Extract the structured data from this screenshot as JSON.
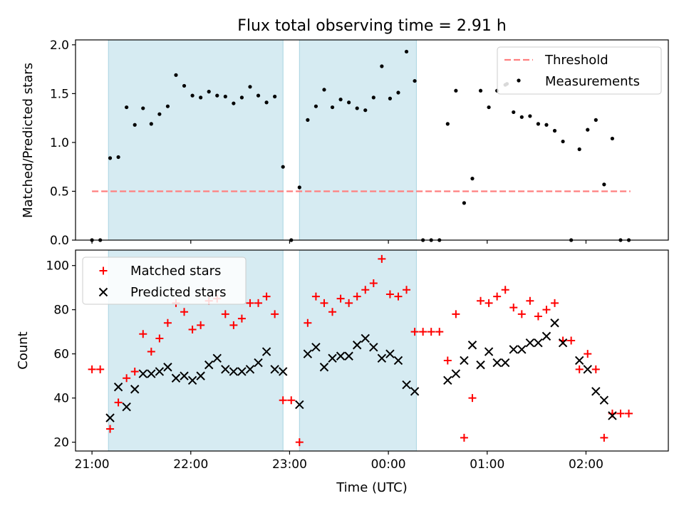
{
  "chart_data": [
    {
      "type": "scatter",
      "title": "Flux total observing time = 2.91 h",
      "xlabel": "",
      "ylabel": "Matched/Predicted stars",
      "xlim": [
        "20:50",
        "02:50"
      ],
      "ylim": [
        0,
        2.05
      ],
      "yticks": [
        0,
        0.5,
        1.0,
        1.5,
        2.0
      ],
      "ytick_labels": [
        "0.0",
        "0.5",
        "1.0",
        "1.5",
        "2.0"
      ],
      "grid": false,
      "legend_location": "upper right",
      "legend": [
        "Threshold",
        "Measurements"
      ],
      "shaded_intervals": [
        [
          "21:10",
          "22:56"
        ],
        [
          "23:06",
          "00:17"
        ]
      ],
      "threshold": {
        "name": "Threshold",
        "value": 0.5,
        "x_range": [
          "21:00",
          "02:27"
        ],
        "color": "#ff7f7f"
      },
      "series": [
        {
          "name": "Measurements",
          "color": "#000000",
          "points": [
            [
              "21:00",
              0.0
            ],
            [
              "21:05",
              0.0
            ],
            [
              "21:11",
              0.84
            ],
            [
              "21:16",
              0.85
            ],
            [
              "21:21",
              1.36
            ],
            [
              "21:26",
              1.18
            ],
            [
              "21:31",
              1.35
            ],
            [
              "21:36",
              1.19
            ],
            [
              "21:41",
              1.29
            ],
            [
              "21:46",
              1.37
            ],
            [
              "21:51",
              1.69
            ],
            [
              "21:56",
              1.58
            ],
            [
              "22:01",
              1.48
            ],
            [
              "22:06",
              1.46
            ],
            [
              "22:11",
              1.52
            ],
            [
              "22:16",
              1.48
            ],
            [
              "22:21",
              1.47
            ],
            [
              "22:26",
              1.4
            ],
            [
              "22:31",
              1.46
            ],
            [
              "22:36",
              1.57
            ],
            [
              "22:41",
              1.48
            ],
            [
              "22:46",
              1.41
            ],
            [
              "22:51",
              1.47
            ],
            [
              "22:56",
              0.75
            ],
            [
              "23:01",
              0.0
            ],
            [
              "23:06",
              0.54
            ],
            [
              "23:11",
              1.23
            ],
            [
              "23:16",
              1.37
            ],
            [
              "23:21",
              1.54
            ],
            [
              "23:26",
              1.36
            ],
            [
              "23:31",
              1.44
            ],
            [
              "23:36",
              1.41
            ],
            [
              "23:41",
              1.35
            ],
            [
              "23:46",
              1.33
            ],
            [
              "23:51",
              1.46
            ],
            [
              "23:56",
              1.78
            ],
            [
              "00:01",
              1.45
            ],
            [
              "00:06",
              1.51
            ],
            [
              "00:11",
              1.93
            ],
            [
              "00:16",
              1.63
            ],
            [
              "00:21",
              0.0
            ],
            [
              "00:26",
              0.0
            ],
            [
              "00:31",
              0.0
            ],
            [
              "00:36",
              1.19
            ],
            [
              "00:41",
              1.53
            ],
            [
              "00:46",
              0.38
            ],
            [
              "00:51",
              0.63
            ],
            [
              "00:56",
              1.53
            ],
            [
              "01:01",
              1.36
            ],
            [
              "01:06",
              1.53
            ],
            [
              "01:11",
              1.59
            ],
            [
              "01:12",
              1.6
            ],
            [
              "01:16",
              1.31
            ],
            [
              "01:21",
              1.26
            ],
            [
              "01:26",
              1.27
            ],
            [
              "01:31",
              1.19
            ],
            [
              "01:36",
              1.18
            ],
            [
              "01:41",
              1.12
            ],
            [
              "01:46",
              1.01
            ],
            [
              "01:51",
              0.0
            ],
            [
              "01:56",
              0.93
            ],
            [
              "02:01",
              1.13
            ],
            [
              "02:06",
              1.23
            ],
            [
              "02:11",
              0.57
            ],
            [
              "02:16",
              1.04
            ],
            [
              "02:21",
              0.0
            ],
            [
              "02:26",
              0.0
            ]
          ]
        }
      ]
    },
    {
      "type": "scatter",
      "title": "",
      "xlabel": "Time (UTC)",
      "ylabel": "Count",
      "xlim": [
        "20:50",
        "02:50"
      ],
      "ylim": [
        16,
        107
      ],
      "yticks": [
        20,
        40,
        60,
        80,
        100
      ],
      "ytick_labels": [
        "20",
        "40",
        "60",
        "80",
        "100"
      ],
      "xticks": [
        "21:00",
        "22:00",
        "23:00",
        "00:00",
        "01:00",
        "02:00"
      ],
      "grid": false,
      "legend_location": "upper left",
      "legend": [
        "Matched stars",
        "Predicted stars"
      ],
      "shaded_intervals": [
        [
          "21:10",
          "22:56"
        ],
        [
          "23:06",
          "00:17"
        ]
      ],
      "series": [
        {
          "name": "Matched stars",
          "marker": "+",
          "color": "#ff0000",
          "points": [
            [
              "21:00",
              53
            ],
            [
              "21:05",
              53
            ],
            [
              "21:11",
              26
            ],
            [
              "21:16",
              38
            ],
            [
              "21:21",
              49
            ],
            [
              "21:26",
              52
            ],
            [
              "21:31",
              69
            ],
            [
              "21:36",
              61
            ],
            [
              "21:41",
              67
            ],
            [
              "21:46",
              74
            ],
            [
              "21:51",
              83
            ],
            [
              "21:56",
              79
            ],
            [
              "22:01",
              71
            ],
            [
              "22:06",
              73
            ],
            [
              "22:11",
              84
            ],
            [
              "22:16",
              85
            ],
            [
              "22:21",
              78
            ],
            [
              "22:26",
              73
            ],
            [
              "22:31",
              76
            ],
            [
              "22:36",
              83
            ],
            [
              "22:41",
              83
            ],
            [
              "22:46",
              86
            ],
            [
              "22:51",
              78
            ],
            [
              "22:56",
              39
            ],
            [
              "23:01",
              39
            ],
            [
              "23:06",
              20
            ],
            [
              "23:11",
              74
            ],
            [
              "23:16",
              86
            ],
            [
              "23:21",
              83
            ],
            [
              "23:26",
              79
            ],
            [
              "23:31",
              85
            ],
            [
              "23:36",
              83
            ],
            [
              "23:41",
              86
            ],
            [
              "23:46",
              89
            ],
            [
              "23:51",
              92
            ],
            [
              "23:56",
              103
            ],
            [
              "00:01",
              87
            ],
            [
              "00:06",
              86
            ],
            [
              "00:11",
              89
            ],
            [
              "00:16",
              70
            ],
            [
              "00:21",
              70
            ],
            [
              "00:26",
              70
            ],
            [
              "00:31",
              70
            ],
            [
              "00:36",
              57
            ],
            [
              "00:41",
              78
            ],
            [
              "00:46",
              22
            ],
            [
              "00:51",
              40
            ],
            [
              "00:56",
              84
            ],
            [
              "01:01",
              83
            ],
            [
              "01:06",
              86
            ],
            [
              "01:11",
              89
            ],
            [
              "01:16",
              81
            ],
            [
              "01:21",
              78
            ],
            [
              "01:26",
              84
            ],
            [
              "01:31",
              77
            ],
            [
              "01:36",
              80
            ],
            [
              "01:41",
              83
            ],
            [
              "01:46",
              66
            ],
            [
              "01:51",
              66
            ],
            [
              "01:56",
              53
            ],
            [
              "02:01",
              60
            ],
            [
              "02:06",
              53
            ],
            [
              "02:11",
              22
            ],
            [
              "02:16",
              33
            ],
            [
              "02:21",
              33
            ],
            [
              "02:26",
              33
            ]
          ]
        },
        {
          "name": "Predicted stars",
          "marker": "x",
          "color": "#000000",
          "points": [
            [
              "21:11",
              31
            ],
            [
              "21:16",
              45
            ],
            [
              "21:21",
              36
            ],
            [
              "21:26",
              44
            ],
            [
              "21:31",
              51
            ],
            [
              "21:36",
              51
            ],
            [
              "21:41",
              52
            ],
            [
              "21:46",
              54
            ],
            [
              "21:51",
              49
            ],
            [
              "21:56",
              50
            ],
            [
              "22:01",
              48
            ],
            [
              "22:06",
              50
            ],
            [
              "22:11",
              55
            ],
            [
              "22:16",
              58
            ],
            [
              "22:21",
              53
            ],
            [
              "22:26",
              52
            ],
            [
              "22:31",
              52
            ],
            [
              "22:36",
              53
            ],
            [
              "22:41",
              56
            ],
            [
              "22:46",
              61
            ],
            [
              "22:51",
              53
            ],
            [
              "22:56",
              52
            ],
            [
              "23:06",
              37
            ],
            [
              "23:11",
              60
            ],
            [
              "23:16",
              63
            ],
            [
              "23:21",
              54
            ],
            [
              "23:26",
              58
            ],
            [
              "23:31",
              59
            ],
            [
              "23:36",
              59
            ],
            [
              "23:41",
              64
            ],
            [
              "23:46",
              67
            ],
            [
              "23:51",
              63
            ],
            [
              "23:56",
              58
            ],
            [
              "00:01",
              60
            ],
            [
              "00:06",
              57
            ],
            [
              "00:11",
              46
            ],
            [
              "00:16",
              43
            ],
            [
              "00:36",
              48
            ],
            [
              "00:41",
              51
            ],
            [
              "00:46",
              57
            ],
            [
              "00:51",
              64
            ],
            [
              "00:56",
              55
            ],
            [
              "01:01",
              61
            ],
            [
              "01:06",
              56
            ],
            [
              "01:11",
              56
            ],
            [
              "01:16",
              62
            ],
            [
              "01:21",
              62
            ],
            [
              "01:26",
              65
            ],
            [
              "01:31",
              65
            ],
            [
              "01:36",
              68
            ],
            [
              "01:41",
              74
            ],
            [
              "01:46",
              65
            ],
            [
              "01:56",
              57
            ],
            [
              "02:01",
              53
            ],
            [
              "02:06",
              43
            ],
            [
              "02:11",
              39
            ],
            [
              "02:16",
              32
            ]
          ]
        }
      ]
    }
  ]
}
